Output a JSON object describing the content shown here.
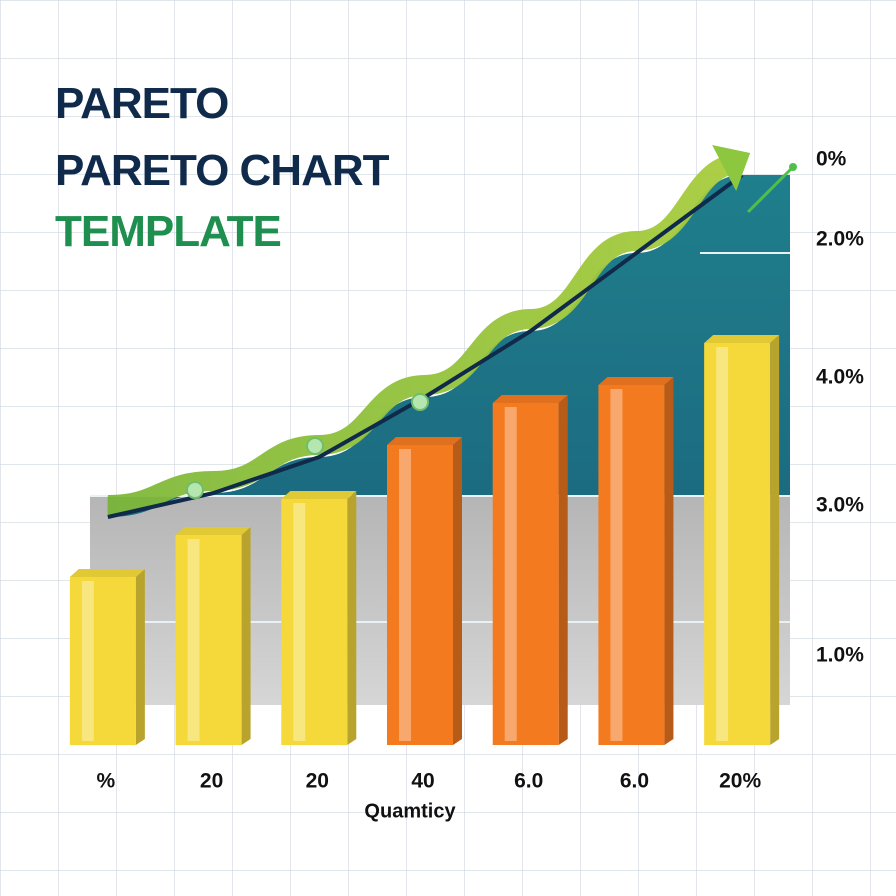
{
  "chart_data": {
    "type": "bar",
    "title_lines": [
      "PARETO",
      "PARETO CHART",
      "TEMPLATE"
    ],
    "title_colors": [
      "#0f2a4a",
      "#0f2a4a",
      "#1e8f4e"
    ],
    "x_label": "Quamticy",
    "categories": [
      "%",
      "20",
      "20",
      "40",
      "6.0",
      "6.0",
      "20%"
    ],
    "values": [
      28,
      35,
      41,
      50,
      57,
      60,
      67
    ],
    "colors": [
      "#f5d93a",
      "#f5d93a",
      "#f5d93a",
      "#f47a20",
      "#f47a20",
      "#f47a20",
      "#f5d93a"
    ],
    "cumulative": {
      "values": [
        38,
        42,
        48,
        58,
        69,
        82,
        95
      ],
      "color": "#8dc63f"
    },
    "ylim": [
      0,
      100
    ],
    "right_labels": [
      "0%",
      "2.0%",
      "4.0%",
      "3.0%",
      "1.0%"
    ],
    "grid": true
  }
}
